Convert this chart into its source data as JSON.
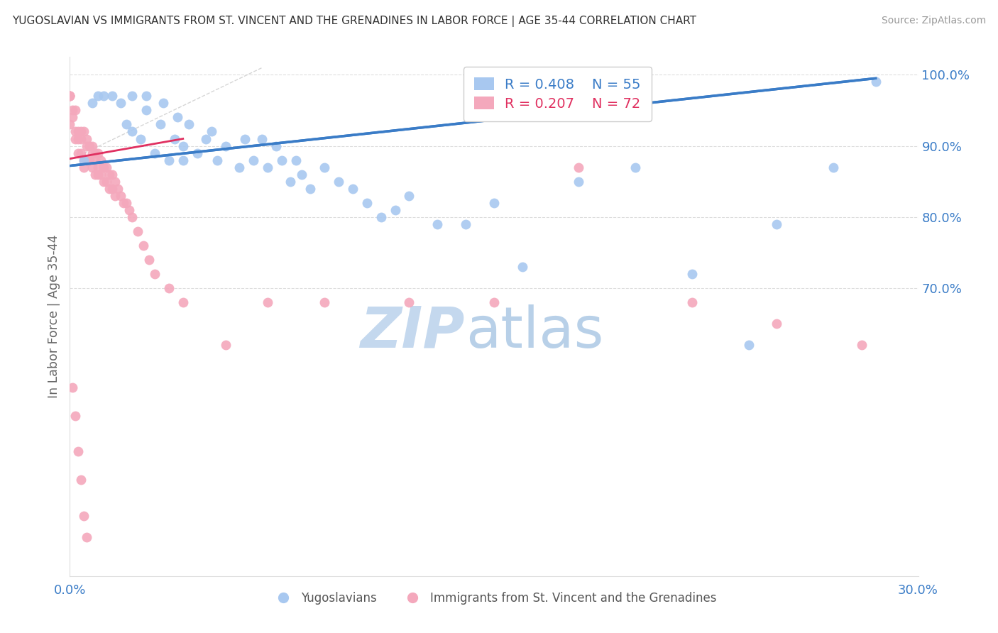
{
  "title": "YUGOSLAVIAN VS IMMIGRANTS FROM ST. VINCENT AND THE GRENADINES IN LABOR FORCE | AGE 35-44 CORRELATION CHART",
  "source": "Source: ZipAtlas.com",
  "ylabel": "In Labor Force | Age 35-44",
  "ylabel_right_ticks": [
    "100.0%",
    "90.0%",
    "80.0%",
    "70.0%"
  ],
  "ylabel_right_vals": [
    1.0,
    0.9,
    0.8,
    0.7
  ],
  "xmin": 0.0,
  "xmax": 0.3,
  "ymin": 0.295,
  "ymax": 1.025,
  "legend_blue_r": "R = 0.408",
  "legend_blue_n": "N = 55",
  "legend_pink_r": "R = 0.207",
  "legend_pink_n": "N = 72",
  "blue_scatter_color": "#A8C8F0",
  "pink_scatter_color": "#F4A8BC",
  "blue_line_color": "#3A7CC7",
  "pink_line_color": "#E03060",
  "ref_line_color": "#CCCCCC",
  "grid_color": "#DDDDDD",
  "watermark_zip_color": "#C8DCF0",
  "watermark_atlas_color": "#A8C8E8",
  "blue_scatter_x": [
    0.005,
    0.008,
    0.01,
    0.012,
    0.015,
    0.018,
    0.02,
    0.022,
    0.022,
    0.025,
    0.027,
    0.027,
    0.03,
    0.032,
    0.033,
    0.035,
    0.037,
    0.038,
    0.04,
    0.04,
    0.042,
    0.045,
    0.048,
    0.05,
    0.052,
    0.055,
    0.06,
    0.062,
    0.065,
    0.068,
    0.07,
    0.073,
    0.075,
    0.078,
    0.08,
    0.082,
    0.085,
    0.09,
    0.095,
    0.1,
    0.105,
    0.11,
    0.115,
    0.12,
    0.13,
    0.14,
    0.15,
    0.16,
    0.18,
    0.2,
    0.22,
    0.24,
    0.25,
    0.27,
    0.285
  ],
  "blue_scatter_y": [
    0.88,
    0.96,
    0.97,
    0.97,
    0.97,
    0.96,
    0.93,
    0.92,
    0.97,
    0.91,
    0.95,
    0.97,
    0.89,
    0.93,
    0.96,
    0.88,
    0.91,
    0.94,
    0.88,
    0.9,
    0.93,
    0.89,
    0.91,
    0.92,
    0.88,
    0.9,
    0.87,
    0.91,
    0.88,
    0.91,
    0.87,
    0.9,
    0.88,
    0.85,
    0.88,
    0.86,
    0.84,
    0.87,
    0.85,
    0.84,
    0.82,
    0.8,
    0.81,
    0.83,
    0.79,
    0.79,
    0.82,
    0.73,
    0.85,
    0.87,
    0.72,
    0.62,
    0.79,
    0.87,
    0.99
  ],
  "pink_scatter_x": [
    0.0,
    0.0,
    0.0,
    0.0,
    0.0,
    0.001,
    0.001,
    0.002,
    0.002,
    0.002,
    0.003,
    0.003,
    0.003,
    0.004,
    0.004,
    0.004,
    0.005,
    0.005,
    0.005,
    0.006,
    0.006,
    0.006,
    0.007,
    0.007,
    0.008,
    0.008,
    0.008,
    0.009,
    0.009,
    0.009,
    0.01,
    0.01,
    0.01,
    0.011,
    0.011,
    0.012,
    0.012,
    0.013,
    0.013,
    0.014,
    0.014,
    0.015,
    0.015,
    0.016,
    0.016,
    0.017,
    0.018,
    0.019,
    0.02,
    0.021,
    0.022,
    0.024,
    0.026,
    0.028,
    0.03,
    0.035,
    0.04,
    0.055,
    0.07,
    0.09,
    0.12,
    0.15,
    0.18,
    0.22,
    0.25,
    0.28,
    0.001,
    0.002,
    0.003,
    0.004,
    0.005,
    0.006
  ],
  "pink_scatter_y": [
    0.97,
    0.97,
    0.97,
    0.97,
    0.93,
    0.95,
    0.94,
    0.95,
    0.92,
    0.91,
    0.92,
    0.91,
    0.89,
    0.92,
    0.91,
    0.89,
    0.92,
    0.88,
    0.87,
    0.91,
    0.9,
    0.88,
    0.9,
    0.88,
    0.9,
    0.89,
    0.87,
    0.89,
    0.88,
    0.86,
    0.89,
    0.87,
    0.86,
    0.88,
    0.86,
    0.87,
    0.85,
    0.87,
    0.85,
    0.86,
    0.84,
    0.86,
    0.84,
    0.85,
    0.83,
    0.84,
    0.83,
    0.82,
    0.82,
    0.81,
    0.8,
    0.78,
    0.76,
    0.74,
    0.72,
    0.7,
    0.68,
    0.62,
    0.68,
    0.68,
    0.68,
    0.68,
    0.87,
    0.68,
    0.65,
    0.62,
    0.56,
    0.52,
    0.47,
    0.43,
    0.38,
    0.35
  ],
  "blue_line_x0": 0.0,
  "blue_line_y0": 0.872,
  "blue_line_x1": 0.285,
  "blue_line_y1": 0.995,
  "pink_line_x0": 0.0,
  "pink_line_y0": 0.882,
  "pink_line_x1": 0.04,
  "pink_line_y1": 0.91,
  "ref_line_x0": 0.0,
  "ref_line_y0": 0.88,
  "ref_line_x1": 0.068,
  "ref_line_y1": 1.01
}
